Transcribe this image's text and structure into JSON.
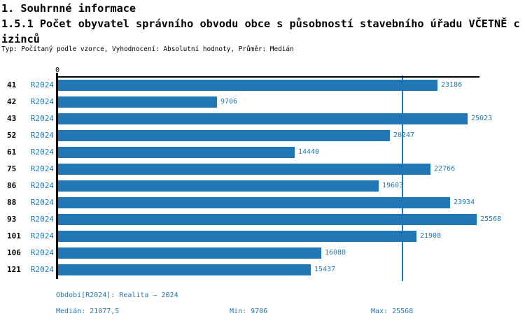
{
  "page": {
    "section_title": "1. Souhrnné informace",
    "chart_title": "1.5.1 Počet obyvatel správního obvodu obce s působností stavebního úřadu VČETNĚ cizinců",
    "meta_line": "Typ: Počítaný podle vzorce, Vyhodnocení: Absolutní hodnoty, Průměr: Medián"
  },
  "footer": {
    "period": "Období[R2024]: Realita – 2024",
    "median": "Medián: 21077,5",
    "min": "Min: 9706",
    "max": "Max: 25568"
  },
  "colors": {
    "bar": "#2077b4",
    "blue_text": "#1f77b4",
    "axis": "#000000",
    "median_line": "#1f77b4"
  },
  "chart_data": {
    "type": "bar",
    "orientation": "horizontal",
    "title": "1.5.1 Počet obyvatel správního obvodu obce s působností stavebního úřadu VČETNĚ cizinců",
    "categories": [
      "41",
      "42",
      "43",
      "52",
      "61",
      "75",
      "86",
      "88",
      "93",
      "101",
      "106",
      "121"
    ],
    "series_label": "R2024",
    "values": [
      23186,
      9706,
      25023,
      20247,
      14440,
      22766,
      19603,
      23934,
      25568,
      21908,
      16088,
      15437
    ],
    "value_labels": [
      "23186",
      "9706",
      "25023",
      "20247",
      "14440",
      "22766",
      "19603",
      "23934",
      "25568",
      "21908",
      "16088",
      "15437"
    ],
    "value_axis": {
      "min": 0,
      "tick_labels": [
        "0"
      ]
    },
    "median": 21077.5,
    "min": 9706,
    "max": 25568,
    "period": "Realita – 2024",
    "grid": false,
    "legend": false
  }
}
